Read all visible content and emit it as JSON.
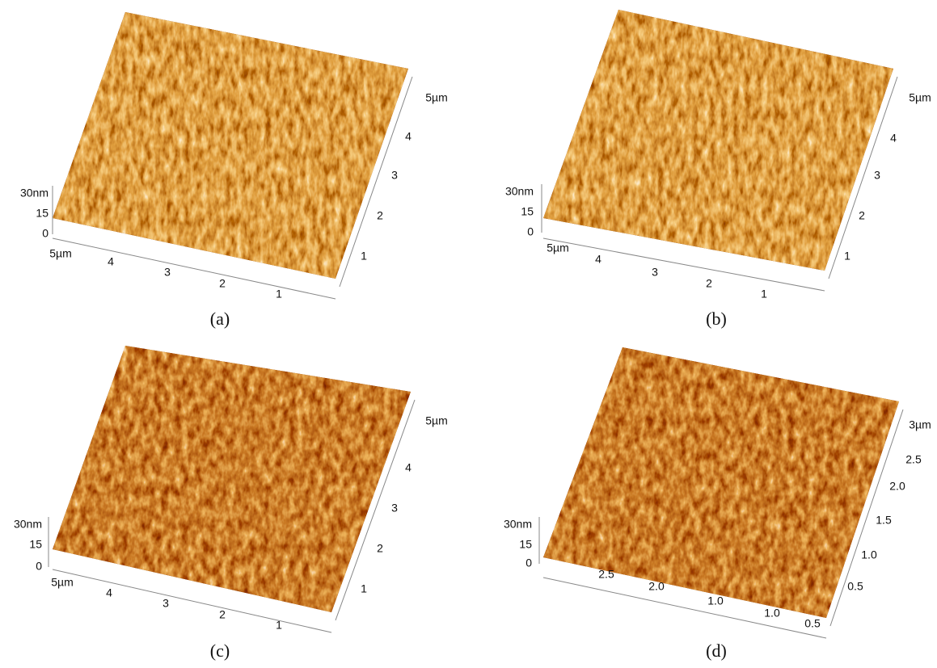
{
  "panels": [
    {
      "label": "(a)",
      "z_axis": {
        "ticks": [
          "30nm",
          "15",
          "0"
        ]
      },
      "x_axis": {
        "ticks": [
          "5µm",
          "4",
          "3",
          "2",
          "1"
        ]
      },
      "y_axis": {
        "ticks": [
          "5µm",
          "4",
          "3",
          "2",
          "1"
        ]
      }
    },
    {
      "label": "(b)",
      "z_axis": {
        "ticks": [
          "30nm",
          "15",
          "0"
        ]
      },
      "x_axis": {
        "ticks": [
          "5µm",
          "4",
          "3",
          "2",
          "1"
        ]
      },
      "y_axis": {
        "ticks": [
          "5µm",
          "4",
          "3",
          "2",
          "1"
        ]
      }
    },
    {
      "label": "(c)",
      "z_axis": {
        "ticks": [
          "30nm",
          "15",
          "0"
        ]
      },
      "x_axis": {
        "ticks": [
          "5µm",
          "4",
          "3",
          "2",
          "1"
        ]
      },
      "y_axis": {
        "ticks": [
          "5µm",
          "4",
          "3",
          "2",
          "1"
        ]
      }
    },
    {
      "label": "(d)",
      "z_axis": {
        "ticks": [
          "30nm",
          "15",
          "0"
        ]
      },
      "x_axis": {
        "ticks": [
          "2.5",
          "2.0",
          "1.0",
          "1.0",
          "0.5"
        ]
      },
      "y_axis": {
        "ticks": [
          "3µm",
          "2.5",
          "2.0",
          "1.5",
          "1.0",
          "0.5"
        ]
      }
    }
  ]
}
